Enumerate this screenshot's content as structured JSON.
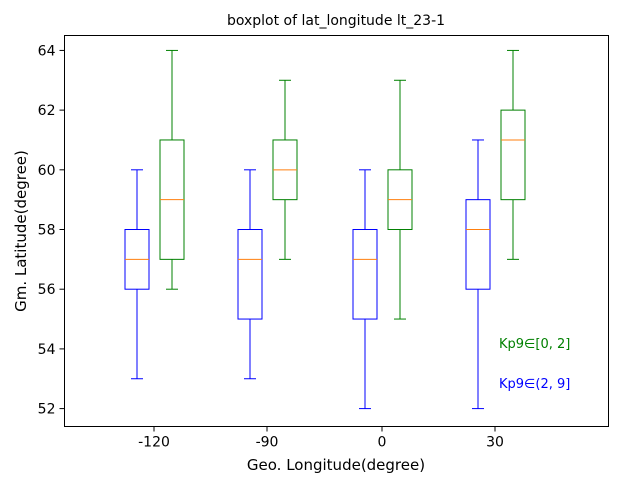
{
  "chart_data": {
    "type": "boxplot",
    "title": "boxplot of lat_longitude lt_23-1",
    "xlabel": "Geo. Longitude(degree)",
    "ylabel": "Gm. Latitude(degree)",
    "categories": [
      "-120",
      "-90",
      "0",
      "30"
    ],
    "ylim": [
      51.4,
      64.5
    ],
    "yticks": [
      52,
      54,
      56,
      58,
      60,
      62,
      64
    ],
    "ytick_labels": [
      "52",
      "54",
      "56",
      "58",
      "60",
      "62",
      "64"
    ],
    "grid": false,
    "legend_position": "lower-right",
    "median_color": "#ff7f0e",
    "series": [
      {
        "name": "Kp9∈[0, 2]",
        "color": "#008000",
        "boxes": [
          {
            "whislo": 56,
            "q1": 57,
            "med": 59,
            "q3": 61,
            "whishi": 64
          },
          {
            "whislo": 57,
            "q1": 59,
            "med": 60,
            "q3": 61,
            "whishi": 63
          },
          {
            "whislo": 55,
            "q1": 58,
            "med": 59,
            "q3": 60,
            "whishi": 63
          },
          {
            "whislo": 57,
            "q1": 59,
            "med": 61,
            "q3": 62,
            "whishi": 64
          }
        ]
      },
      {
        "name": "Kp9∈(2, 9]",
        "color": "#0000ff",
        "boxes": [
          {
            "whislo": 53,
            "q1": 56,
            "med": 57,
            "q3": 58,
            "whishi": 60
          },
          {
            "whislo": 53,
            "q1": 55,
            "med": 57,
            "q3": 58,
            "whishi": 60
          },
          {
            "whislo": 52,
            "q1": 55,
            "med": 57,
            "q3": 58,
            "whishi": 60
          },
          {
            "whislo": 52,
            "q1": 56,
            "med": 58,
            "q3": 59,
            "whishi": 61
          }
        ]
      }
    ]
  }
}
